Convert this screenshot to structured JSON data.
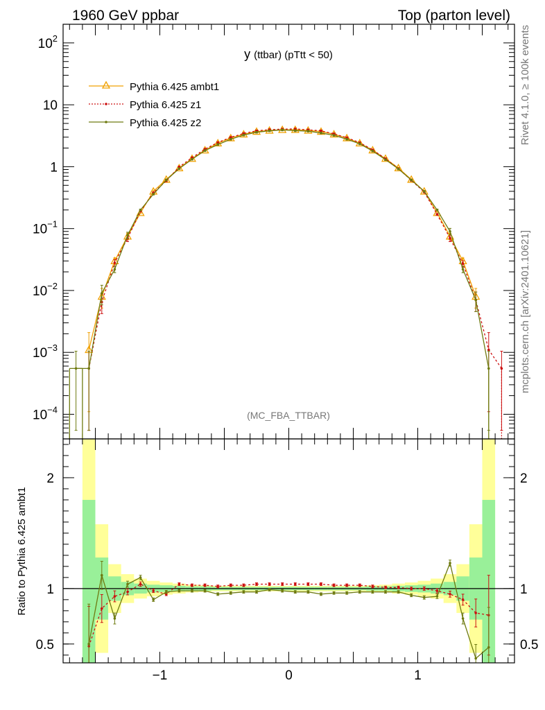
{
  "header": {
    "left_label": "1960 GeV ppbar",
    "right_label": "Top (parton level)"
  },
  "side": {
    "rivet_label": "Rivet 4.1.0, ≥ 100k events",
    "mcplots_label": "mcplots.cern.ch [arXiv:2401.10621]"
  },
  "watermark": "(MC_FBA_TTBAR)",
  "chart_data": [
    {
      "type": "line",
      "title": "y (ttbar) (pTtt < 50)",
      "title_main": "y",
      "title_sub": "(ttbar)  (pTtt < 50)",
      "xlabel": "",
      "ylabel": "",
      "y_scale": "log",
      "xlim": [
        -1.75,
        1.75
      ],
      "ylim": [
        4e-05,
        200
      ],
      "y_ticks": [
        {
          "value": 100,
          "label_base": "10",
          "label_exp": "2"
        },
        {
          "value": 10,
          "label_base": "10",
          "label_exp": ""
        },
        {
          "value": 1,
          "label_base": "1",
          "label_exp": ""
        },
        {
          "value": 0.1,
          "label_base": "10",
          "label_exp": "−1"
        },
        {
          "value": 0.01,
          "label_base": "10",
          "label_exp": "−2"
        },
        {
          "value": 0.001,
          "label_base": "10",
          "label_exp": "−3"
        },
        {
          "value": 0.0001,
          "label_base": "10",
          "label_exp": "−4"
        }
      ],
      "legend_position": "top-left",
      "x": [
        -1.65,
        -1.55,
        -1.45,
        -1.35,
        -1.25,
        -1.15,
        -1.05,
        -0.95,
        -0.85,
        -0.75,
        -0.65,
        -0.55,
        -0.45,
        -0.35,
        -0.25,
        -0.15,
        -0.05,
        0.05,
        0.15,
        0.25,
        0.35,
        0.45,
        0.55,
        0.65,
        0.75,
        0.85,
        0.95,
        1.05,
        1.15,
        1.25,
        1.35,
        1.45,
        1.55,
        1.65
      ],
      "series": [
        {
          "name": "Pythia 6.425 ambt1",
          "color": "#f0a000",
          "marker": "triangle",
          "dash": "",
          "values": [
            null,
            0.0011,
            0.008,
            0.03,
            0.075,
            0.18,
            0.4,
            0.62,
            0.95,
            1.35,
            1.85,
            2.4,
            2.9,
            3.35,
            3.7,
            3.85,
            3.95,
            3.95,
            3.85,
            3.7,
            3.35,
            2.9,
            2.4,
            1.85,
            1.35,
            0.95,
            0.62,
            0.4,
            0.18,
            0.075,
            0.03,
            0.008,
            null,
            null
          ]
        },
        {
          "name": "Pythia 6.425 z1",
          "color": "#cc1010",
          "marker": "dot",
          "dash": "3,3",
          "values": [
            null,
            0.00055,
            0.0065,
            0.028,
            0.07,
            0.19,
            0.38,
            0.59,
            0.99,
            1.4,
            1.92,
            2.46,
            2.98,
            3.44,
            3.8,
            3.97,
            4.05,
            4.07,
            3.95,
            3.8,
            3.4,
            2.94,
            2.45,
            1.87,
            1.35,
            0.93,
            0.6,
            0.39,
            0.17,
            0.07,
            0.027,
            0.007,
            0.0011,
            0.00055
          ]
        },
        {
          "name": "Pythia 6.425 z2",
          "color": "#6e7a10",
          "marker": "dot",
          "dash": "",
          "values": [
            0.00055,
            0.00055,
            0.009,
            0.022,
            0.078,
            0.2,
            0.36,
            0.61,
            0.93,
            1.32,
            1.82,
            2.28,
            2.78,
            3.25,
            3.6,
            3.8,
            3.92,
            3.82,
            3.75,
            3.5,
            3.22,
            2.78,
            2.34,
            1.79,
            1.3,
            0.92,
            0.61,
            0.4,
            0.2,
            0.09,
            0.022,
            0.007,
            0.00055,
            null
          ]
        }
      ]
    },
    {
      "type": "line",
      "title": "",
      "xlabel": "",
      "ylabel": "Ratio to Pythia 6.425 ambt1",
      "xlim": [
        -1.75,
        1.75
      ],
      "ylim": [
        0.33,
        2.35
      ],
      "y_ticks": [
        {
          "value": 2,
          "label": "2"
        },
        {
          "value": 1,
          "label": "1"
        },
        {
          "value": 0.5,
          "label": "0.5"
        }
      ],
      "x_ticks": [
        {
          "value": -1,
          "label": "−1"
        },
        {
          "value": 0,
          "label": "0"
        },
        {
          "value": 1,
          "label": "1"
        }
      ],
      "band_green_half": [
        null,
        0.8,
        0.28,
        0.11,
        0.06,
        0.045,
        0.035,
        0.03,
        0.025,
        0.02,
        0.02,
        0.015,
        0.015,
        0.015,
        0.015,
        0.015,
        0.015,
        0.015,
        0.015,
        0.015,
        0.015,
        0.015,
        0.015,
        0.02,
        0.02,
        0.025,
        0.03,
        0.035,
        0.045,
        0.06,
        0.11,
        0.28,
        0.8,
        null
      ],
      "band_yellow_half": [
        null,
        1.8,
        0.58,
        0.22,
        0.13,
        0.09,
        0.07,
        0.055,
        0.045,
        0.035,
        0.03,
        0.025,
        0.025,
        0.025,
        0.025,
        0.025,
        0.025,
        0.025,
        0.025,
        0.025,
        0.025,
        0.025,
        0.025,
        0.03,
        0.035,
        0.045,
        0.055,
        0.07,
        0.09,
        0.13,
        0.22,
        0.58,
        1.8,
        null
      ],
      "series": [
        {
          "name": "Pythia 6.425 z1",
          "color": "#cc1010",
          "dash": "3,3",
          "values": [
            null,
            0.48,
            0.82,
            0.93,
            0.97,
            1.04,
            0.98,
            0.95,
            1.04,
            1.03,
            1.03,
            1.02,
            1.03,
            1.03,
            1.04,
            1.04,
            1.04,
            1.04,
            1.04,
            1.04,
            1.03,
            1.03,
            1.03,
            1.02,
            1.01,
            1.01,
            1.0,
            1.0,
            0.98,
            0.95,
            0.9,
            0.78,
            0.76,
            null
          ]
        },
        {
          "name": "Pythia 6.425 z2",
          "color": "#6e7a10",
          "dash": "",
          "values": [
            null,
            0.5,
            1.12,
            0.73,
            1.04,
            1.1,
            0.9,
            0.97,
            0.98,
            0.98,
            0.98,
            0.95,
            0.96,
            0.97,
            0.97,
            0.99,
            0.98,
            0.97,
            0.97,
            0.95,
            0.96,
            0.96,
            0.97,
            0.97,
            0.97,
            0.97,
            0.94,
            0.92,
            0.93,
            1.23,
            0.73,
            0.37,
            0.47,
            null
          ]
        }
      ]
    }
  ]
}
